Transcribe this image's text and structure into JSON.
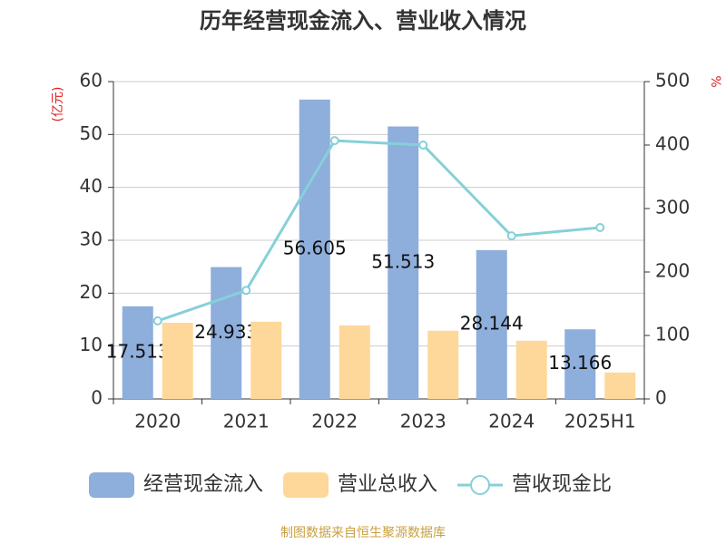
{
  "chart_data": {
    "type": "bar-line",
    "title": "历年经营现金流入、营业收入情况",
    "y_label": "(亿元)",
    "y2_label": "%",
    "categories": [
      "2020",
      "2021",
      "2022",
      "2023",
      "2024",
      "2025H1"
    ],
    "series": [
      {
        "name": "经营现金流入",
        "type": "bar",
        "color": "#8eaedc",
        "values": [
          17.513,
          24.933,
          56.605,
          51.513,
          28.144,
          13.166
        ],
        "show_labels": true
      },
      {
        "name": "营业总收入",
        "type": "bar",
        "color": "#fdd89a",
        "values": [
          14.4,
          14.6,
          13.9,
          12.9,
          11.0,
          5.0
        ]
      },
      {
        "name": "营收现金比",
        "type": "line",
        "axis": "y2",
        "color": "#86d0d8",
        "values": [
          123,
          171,
          407,
          400,
          257,
          270
        ]
      }
    ],
    "ylim": [
      0,
      60
    ],
    "yticks": [
      0,
      10,
      20,
      30,
      40,
      50,
      60
    ],
    "y2lim": [
      0,
      500
    ],
    "y2ticks": [
      0,
      100,
      200,
      300,
      400,
      500
    ],
    "grid": true,
    "legend": "bottom",
    "source": "制图数据来自恒生聚源数据库"
  }
}
